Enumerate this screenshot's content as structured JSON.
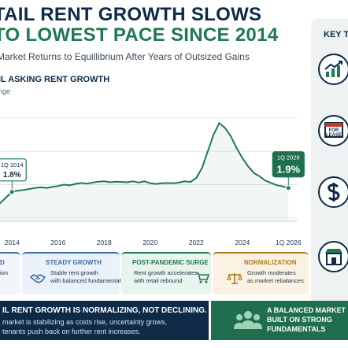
{
  "header": {
    "title_line1": "TAIL RENT GROWTH SLOWS",
    "title_line2": "TO LOWEST PACE SINCE 2014",
    "subtitle": "Market Returns to Equillibrium After Years of Outsized Gains"
  },
  "sidebar": {
    "title": "KEY T",
    "icons": [
      "growth-chart-icon",
      "for-lease-sign-icon",
      "dollar-icon",
      "storefront-icon"
    ],
    "for_lease_label_1": "FOR",
    "for_lease_label_2": "LEASE"
  },
  "chart_data": {
    "type": "line",
    "title": "IL ASKING RENT GROWTH",
    "subtitle": "nge",
    "x_tick_labels": [
      "2014",
      "2016",
      "2018",
      "2020",
      "2022",
      "2024",
      "1Q 2026"
    ],
    "x_ticks": [
      2014,
      2016,
      2018,
      2020,
      2022,
      2024,
      2026
    ],
    "xlim": [
      2013.0,
      2026.4
    ],
    "ylim": [
      0.9,
      4.4
    ],
    "grid": "horizontal",
    "color": "#1f7a52",
    "series": [
      {
        "x": [
          2013.0,
          2013.25,
          2013.5,
          2013.75,
          2014.0,
          2014.25,
          2014.5,
          2014.75,
          2015.0,
          2015.25,
          2015.5,
          2015.75,
          2016.0,
          2016.25,
          2016.5,
          2016.75,
          2017.0,
          2017.25,
          2017.5,
          2017.75,
          2018.0,
          2018.25,
          2018.5,
          2018.75,
          2019.0,
          2019.25,
          2019.5,
          2019.75,
          2020.0,
          2020.25,
          2020.5,
          2020.75,
          2021.0,
          2021.25,
          2021.5,
          2021.75,
          2022.0,
          2022.25,
          2022.5,
          2022.75,
          2023.0,
          2023.25,
          2023.5,
          2023.75,
          2024.0,
          2024.25,
          2024.5,
          2024.75,
          2025.0,
          2025.25,
          2025.5,
          2025.75,
          2026.0
        ],
        "y": [
          1.25,
          1.3,
          1.45,
          1.62,
          1.78,
          1.82,
          1.84,
          1.87,
          1.9,
          1.92,
          1.9,
          1.93,
          1.96,
          2.0,
          1.98,
          2.02,
          2.05,
          2.03,
          2.06,
          2.09,
          2.1,
          2.07,
          2.09,
          2.08,
          2.07,
          2.1,
          2.06,
          2.1,
          2.04,
          2.02,
          2.04,
          2.05,
          2.04,
          2.06,
          2.1,
          2.08,
          2.2,
          2.5,
          3.0,
          3.5,
          3.85,
          3.7,
          3.45,
          3.1,
          2.8,
          2.55,
          2.35,
          2.25,
          2.12,
          2.05,
          1.98,
          1.95,
          1.9
        ]
      }
    ],
    "annotations": [
      {
        "label": "1Q 2014",
        "value": "1.8%",
        "x": 2014.0,
        "y": 1.78
      },
      {
        "label": "1Q 2026",
        "value": "1.9%",
        "x": 2026.0,
        "y": 1.9
      }
    ]
  },
  "cards": [
    {
      "title": "D",
      "lines": [
        "",
        "ion"
      ],
      "accent": "#3a6fa8",
      "bg": "#f2f5f9"
    },
    {
      "title": "STEADY GROWTH",
      "lines": [
        "Stable rent growth",
        "with balanced fundamentals"
      ],
      "icon": "handshake-icon",
      "accent": "#3a6fa8",
      "bg": "#eaf1f9"
    },
    {
      "title": "POST-PANDEMIC SURGE",
      "lines": [
        "Rent growth accelerates",
        "with retail rebound"
      ],
      "icon": "shopping-cart-icon",
      "accent": "#1f7a52",
      "bg": "#e8f4ee"
    },
    {
      "title": "NORMALIZATION",
      "lines": [
        "Growth moderates",
        "as market rebalances"
      ],
      "icon": "balance-scale-icon",
      "accent": "#b07a1e",
      "bg": "#fbf2e3"
    }
  ],
  "banner": {
    "heading": "IL RENT GROWTH IS NORMALIZING, NOT DECLINING.",
    "line1": "market is stabilizing as costs rise, uncertainty grows,",
    "line2": "tenants push back on further rent increases."
  },
  "banner2": {
    "line1": "A BALANCED MARKET",
    "line2": "BUILT ON STRONG",
    "line3": "FUNDAMENTALS",
    "icon": "people-group-icon"
  }
}
